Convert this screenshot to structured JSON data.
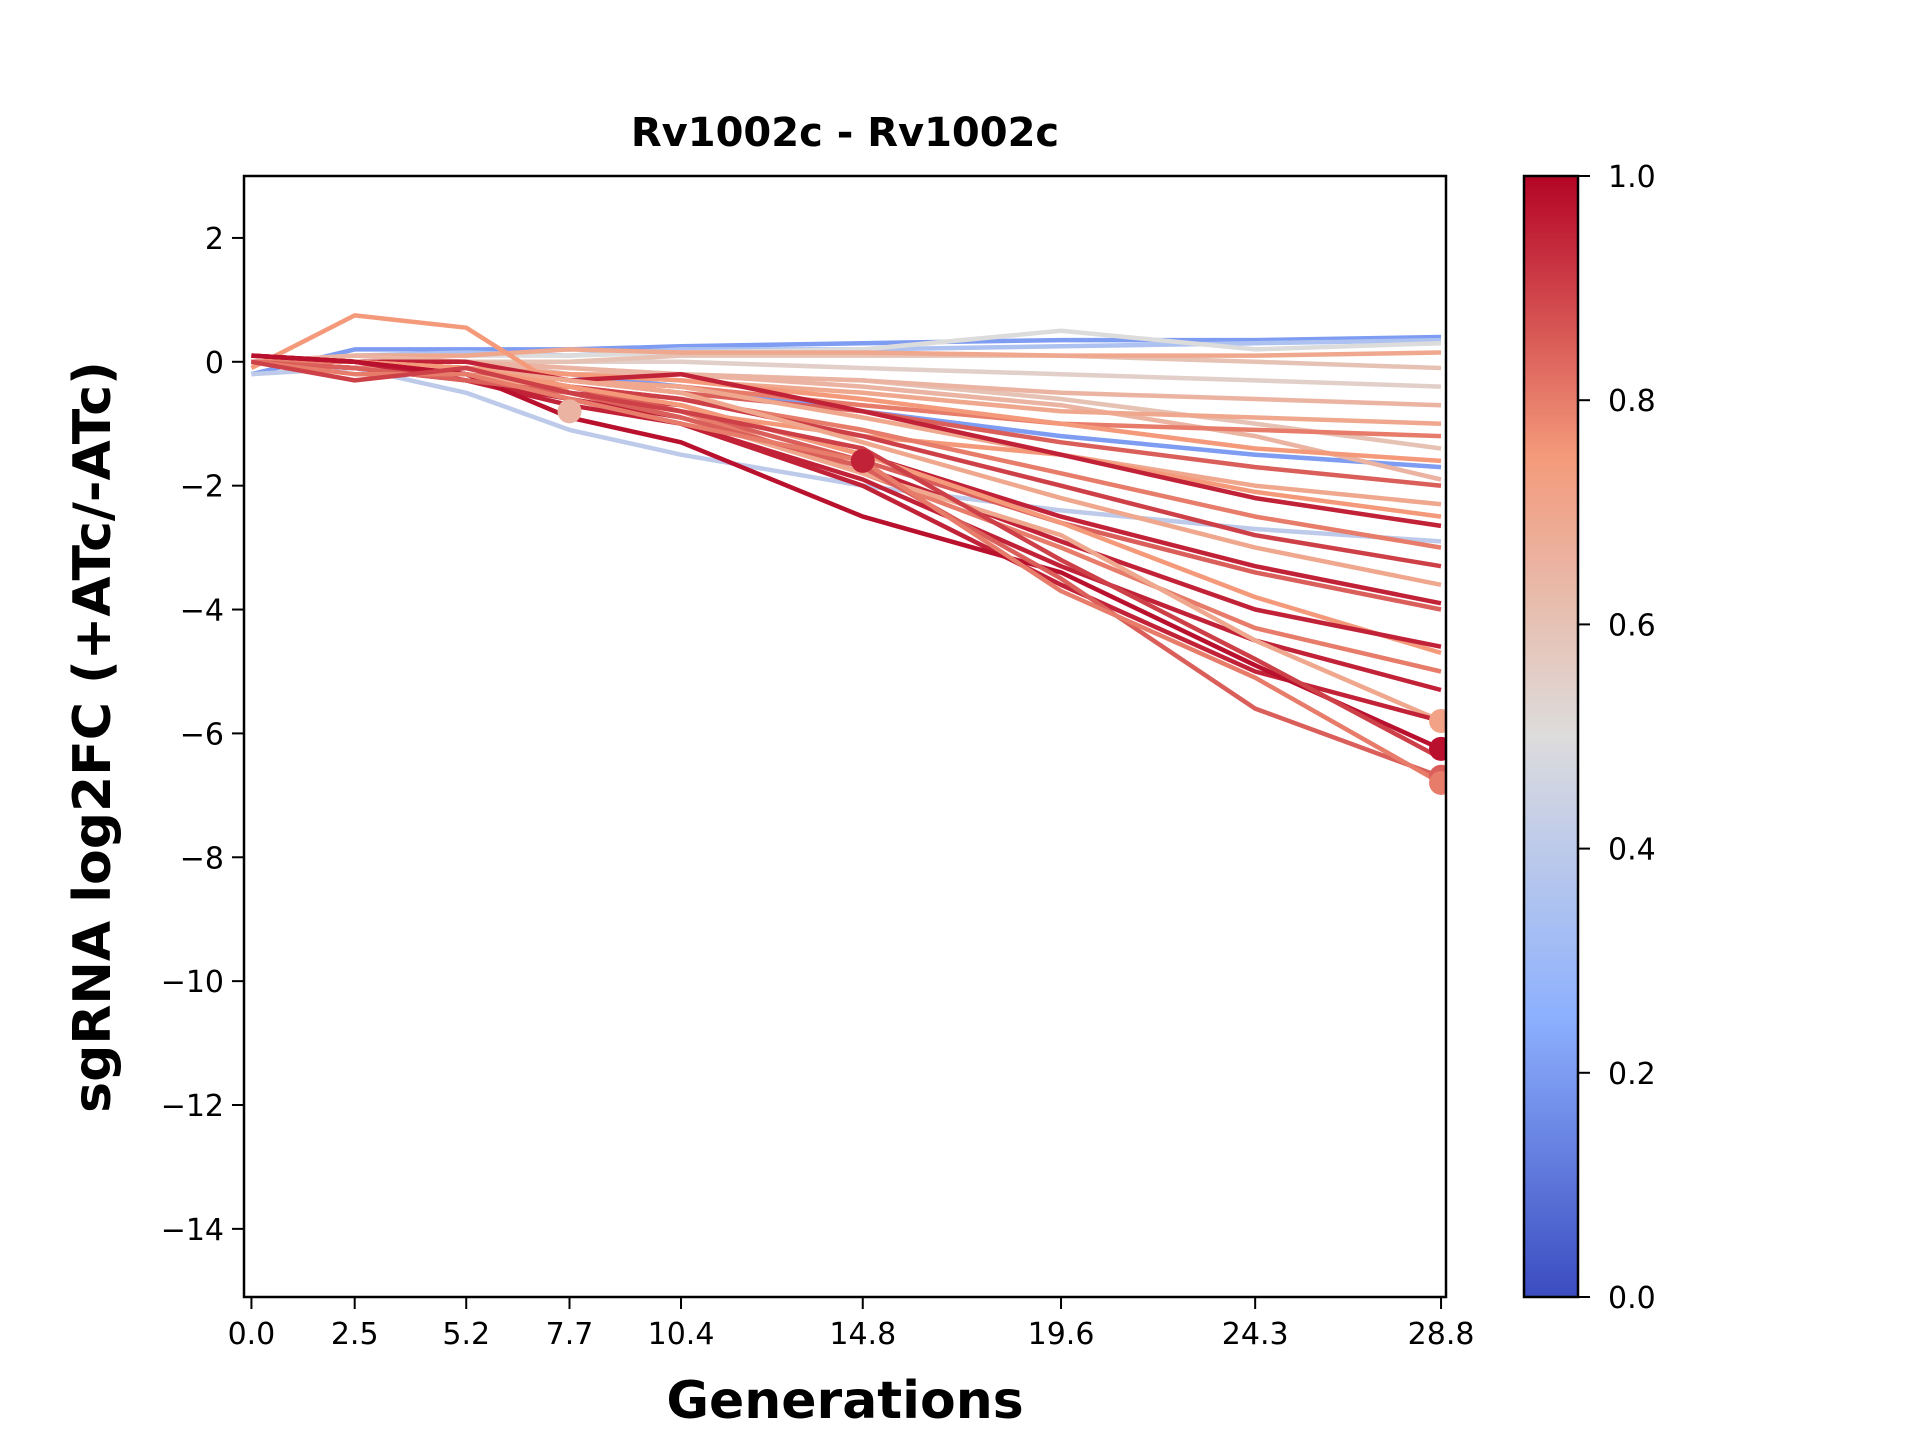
{
  "chart_data": {
    "type": "line",
    "title": "Rv1002c - Rv1002c",
    "xlabel": "Generations",
    "ylabel": "sgRNA log2FC (+ATc/-ATc)",
    "x": [
      0.0,
      2.5,
      5.2,
      7.7,
      10.4,
      14.8,
      19.6,
      24.3,
      28.8
    ],
    "xtick_labels": [
      "0.0",
      "2.5",
      "5.2",
      "7.7",
      "10.4",
      "14.8",
      "19.6",
      "24.3",
      "28.8"
    ],
    "xlim": [
      -0.18,
      28.92
    ],
    "ylim": [
      -15.1,
      3.0
    ],
    "yticks": [
      2,
      0,
      -2,
      -4,
      -6,
      -8,
      -10,
      -12,
      -14
    ],
    "ytick_labels": [
      "2",
      "0",
      "−2",
      "−4",
      "−6",
      "−8",
      "−10",
      "−12",
      "−14"
    ],
    "colorbar": {
      "colormap": "coolwarm",
      "range": [
        0.0,
        1.0
      ],
      "ticks": [
        0.0,
        0.2,
        0.4,
        0.6,
        0.8,
        1.0
      ],
      "tick_labels": [
        "0.0",
        "0.2",
        "0.4",
        "0.6",
        "0.8",
        "1.0"
      ],
      "stops": [
        "#3b4cc0",
        "#8db0fe",
        "#dddcdc",
        "#f49a7b",
        "#b40426"
      ]
    },
    "series": [
      {
        "c": 0.2,
        "values": [
          -0.2,
          0.2,
          0.2,
          0.2,
          0.25,
          0.3,
          0.35,
          0.35,
          0.4
        ]
      },
      {
        "c": 0.35,
        "values": [
          0,
          0.1,
          0.15,
          0.1,
          0.2,
          0.2,
          0.25,
          0.3,
          0.35
        ]
      },
      {
        "c": 0.5,
        "values": [
          0,
          0.1,
          0.1,
          0.1,
          0.15,
          0.2,
          0.5,
          0.2,
          0.3
        ]
      },
      {
        "c": 0.55,
        "values": [
          0,
          0,
          0,
          0,
          0,
          -0.1,
          -0.2,
          -0.3,
          -0.4
        ]
      },
      {
        "c": 0.6,
        "values": [
          0,
          0,
          0,
          0,
          0.1,
          0.1,
          0.1,
          0,
          -0.1
        ]
      },
      {
        "c": 0.7,
        "values": [
          0,
          0.1,
          0.1,
          0.2,
          0.15,
          0.15,
          0.1,
          0.1,
          0.15
        ]
      },
      {
        "c": 0.4,
        "values": [
          -0.2,
          -0.1,
          -0.5,
          -1.1,
          -1.5,
          -2.0,
          -2.4,
          -2.7,
          -2.9
        ]
      },
      {
        "c": 0.2,
        "values": [
          0,
          0,
          0,
          -0.2,
          -0.4,
          -0.8,
          -1.2,
          -1.5,
          -1.7
        ]
      },
      {
        "c": 0.6,
        "values": [
          0,
          0,
          0,
          -0.1,
          -0.2,
          -0.3,
          -0.6,
          -1.0,
          -1.4
        ]
      },
      {
        "c": 0.65,
        "values": [
          0,
          0.1,
          0,
          -0.1,
          -0.2,
          -0.4,
          -0.7,
          -1.2,
          -1.9
        ]
      },
      {
        "c": 0.65,
        "values": [
          0,
          0,
          0,
          -0.2,
          -0.2,
          -0.3,
          -0.5,
          -0.6,
          -0.7
        ]
      },
      {
        "c": 0.7,
        "values": [
          0,
          0,
          -0.1,
          -0.2,
          -0.3,
          -0.5,
          -0.8,
          -0.9,
          -1.0
        ]
      },
      {
        "c": 0.8,
        "values": [
          0,
          0,
          -0.1,
          -0.3,
          -0.4,
          -0.7,
          -1.0,
          -1.1,
          -1.2
        ]
      },
      {
        "c": 0.75,
        "values": [
          0,
          0,
          -0.1,
          -0.2,
          -0.3,
          -0.6,
          -1.0,
          -1.4,
          -1.6
        ]
      },
      {
        "c": 0.85,
        "values": [
          0,
          -0.1,
          -0.1,
          -0.3,
          -0.5,
          -0.8,
          -1.3,
          -1.7,
          -2.0
        ]
      },
      {
        "c": 0.7,
        "values": [
          0,
          0,
          -0.1,
          -0.3,
          -0.4,
          -0.9,
          -1.5,
          -2.0,
          -2.3
        ]
      },
      {
        "c": 0.75,
        "values": [
          -0.1,
          0.75,
          0.55,
          -0.5,
          -0.8,
          -1.2,
          -1.5,
          -2.1,
          -2.5
        ]
      },
      {
        "c": 0.95,
        "values": [
          0.1,
          0,
          0,
          -0.3,
          -0.2,
          -0.8,
          -1.5,
          -2.2,
          -2.65
        ]
      },
      {
        "c": 0.8,
        "values": [
          0,
          -0.1,
          -0.2,
          -0.4,
          -0.6,
          -1.1,
          -1.8,
          -2.5,
          -3.0
        ]
      },
      {
        "c": 0.9,
        "values": [
          0,
          0,
          -0.1,
          -0.4,
          -0.6,
          -1.2,
          -2.0,
          -2.8,
          -3.3
        ]
      },
      {
        "c": 0.7,
        "values": [
          0,
          0,
          -0.1,
          -0.3,
          -0.5,
          -1.3,
          -2.2,
          -3.0,
          -3.6
        ]
      },
      {
        "c": 0.95,
        "values": [
          0,
          -0.1,
          -0.2,
          -0.5,
          -0.7,
          -1.5,
          -2.5,
          -3.3,
          -3.9
        ]
      },
      {
        "c": 0.85,
        "values": [
          0,
          -0.1,
          -0.2,
          -0.4,
          -0.8,
          -1.6,
          -2.6,
          -3.4,
          -4.0
        ]
      },
      {
        "c": 0.75,
        "values": [
          0,
          0,
          -0.1,
          -0.4,
          -0.7,
          -1.5,
          -2.6,
          -3.8,
          -4.7
        ]
      },
      {
        "c": 0.95,
        "values": [
          0,
          -0.1,
          -0.3,
          -0.6,
          -0.9,
          -1.7,
          -2.9,
          -4.0,
          -4.6
        ]
      },
      {
        "c": 0.8,
        "values": [
          0,
          0,
          -0.2,
          -0.5,
          -0.8,
          -1.8,
          -3.0,
          -4.3,
          -5.0
        ]
      },
      {
        "c": 0.95,
        "values": [
          0.1,
          0,
          -0.2,
          -0.6,
          -1.0,
          -1.9,
          -3.3,
          -4.5,
          -5.3
        ]
      },
      {
        "c": 0.7,
        "values": [
          0,
          -0.1,
          -0.2,
          -0.5,
          -0.9,
          -1.8,
          -2.8,
          -4.5,
          -5.8
        ]
      },
      {
        "c": 0.95,
        "values": [
          0.1,
          0,
          -0.3,
          -0.7,
          -1.0,
          -2.0,
          -3.6,
          -5.0,
          -5.8
        ]
      },
      {
        "c": 0.98,
        "values": [
          0.1,
          0,
          -0.2,
          -0.9,
          -1.3,
          -2.5,
          -3.4,
          -4.9,
          -6.25
        ]
      },
      {
        "c": 0.85,
        "values": [
          0,
          -0.1,
          -0.3,
          -0.5,
          -0.9,
          -1.7,
          -3.5,
          -5.6,
          -6.7
        ]
      },
      {
        "c": 0.8,
        "values": [
          0,
          -0.2,
          -0.2,
          -0.6,
          -1.0,
          -1.6,
          -3.7,
          -5.1,
          -6.8
        ]
      },
      {
        "c": 0.9,
        "values": [
          0,
          -0.3,
          -0.1,
          -0.5,
          -0.8,
          -1.4,
          -3.2,
          -4.8,
          -6.4
        ]
      }
    ],
    "markers": [
      {
        "x": 7.7,
        "y": -0.8,
        "c": 0.65
      },
      {
        "x": 14.8,
        "y": -1.6,
        "c": 0.95
      },
      {
        "x": 28.8,
        "y": -5.8,
        "c": 0.72
      },
      {
        "x": 28.8,
        "y": -6.25,
        "c": 0.98
      },
      {
        "x": 28.8,
        "y": -6.7,
        "c": 0.85
      },
      {
        "x": 28.8,
        "y": -6.8,
        "c": 0.8
      }
    ]
  }
}
